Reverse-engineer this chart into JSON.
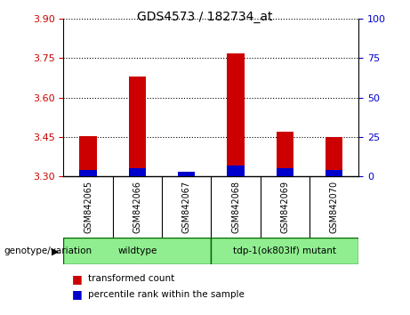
{
  "title": "GDS4573 / 182734_at",
  "samples": [
    "GSM842065",
    "GSM842066",
    "GSM842067",
    "GSM842068",
    "GSM842069",
    "GSM842070"
  ],
  "transformed_counts": [
    3.455,
    3.68,
    3.315,
    3.77,
    3.47,
    3.45
  ],
  "percentile_ranks": [
    4,
    5,
    3,
    7,
    5,
    4
  ],
  "ymin": 3.3,
  "ymax": 3.9,
  "left_yticks": [
    3.3,
    3.45,
    3.6,
    3.75,
    3.9
  ],
  "right_yticks": [
    0,
    25,
    50,
    75,
    100
  ],
  "bar_color_red": "#cc0000",
  "bar_color_blue": "#0000cc",
  "group_labels": [
    "wildtype",
    "tdp-1(ok803lf) mutant"
  ],
  "group_color": "#90ee90",
  "group_border_color": "#006600",
  "genotype_label": "genotype/variation",
  "legend_red": "transformed count",
  "legend_blue": "percentile rank within the sample",
  "left_tick_color": "#cc0000",
  "right_tick_color": "#0000cc",
  "sample_area_bg": "#c0c0c0",
  "bar_width": 0.35,
  "title_fontsize": 10,
  "tick_fontsize": 8,
  "sample_fontsize": 7,
  "legend_fontsize": 7.5,
  "genotype_fontsize": 7.5
}
